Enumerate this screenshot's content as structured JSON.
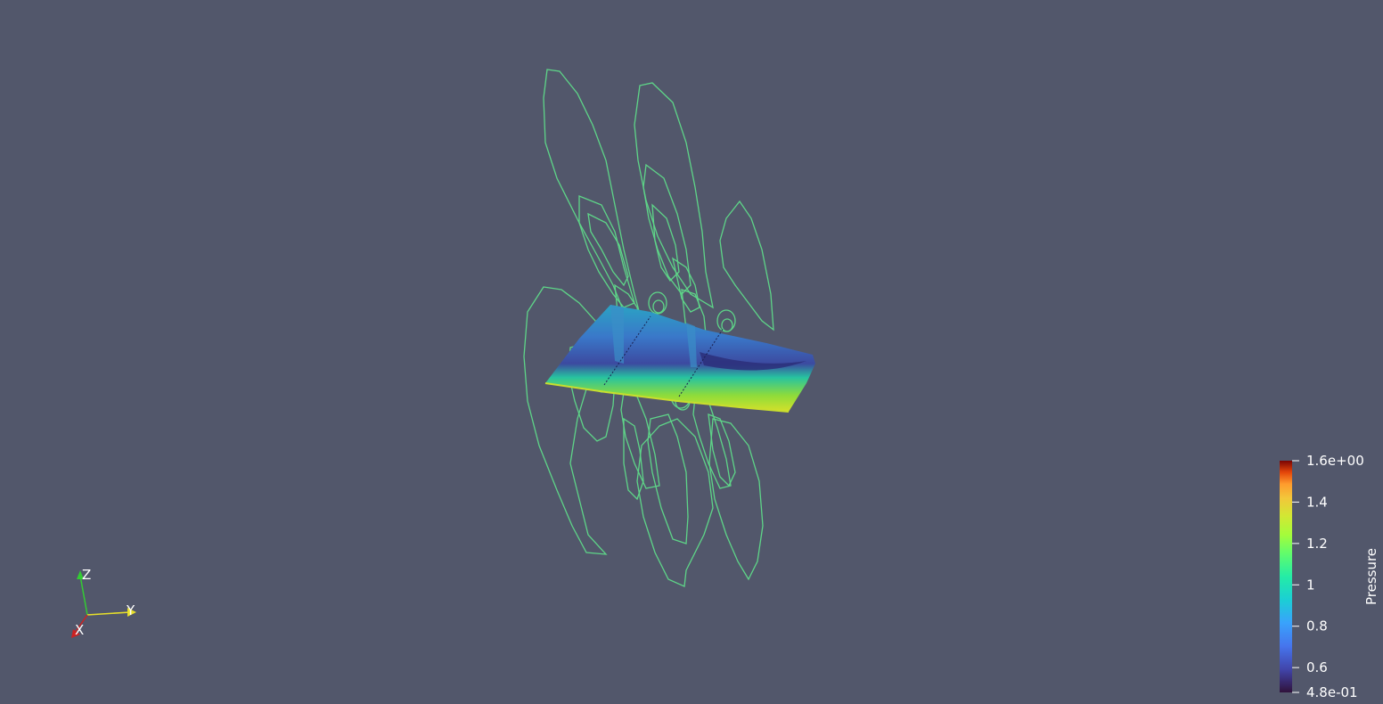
{
  "colorbar": {
    "title": "Pressure",
    "min_label": "4.8e-01",
    "max_label": "1.6e+00",
    "min_value": 0.48,
    "max_value": 1.6,
    "ticks": [
      {
        "value": 1.4,
        "label": "1.4"
      },
      {
        "value": 1.2,
        "label": "1.2"
      },
      {
        "value": 1.0,
        "label": "1"
      },
      {
        "value": 0.8,
        "label": "0.8"
      },
      {
        "value": 0.6,
        "label": "0.6"
      }
    ]
  },
  "axes": {
    "x_label": "X",
    "y_label": "Y",
    "z_label": "Z"
  },
  "colors": {
    "background": "#52576b",
    "contour": "#5fdc8a",
    "x_axis": "#cc2222",
    "y_axis": "#e8e02a",
    "z_axis": "#33cc33"
  }
}
